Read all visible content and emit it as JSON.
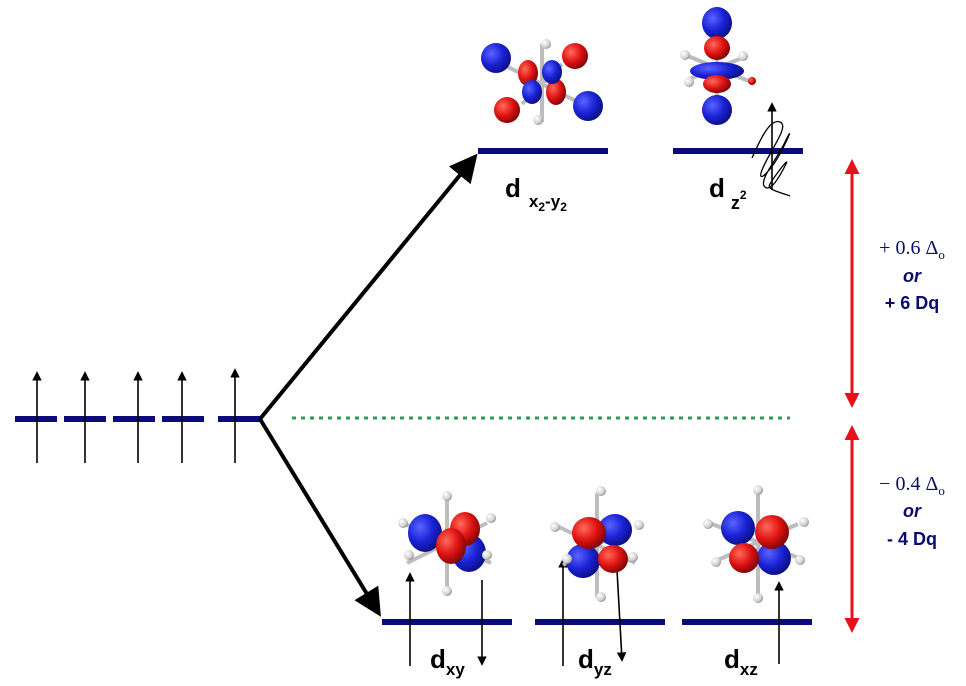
{
  "colors": {
    "level": "#0a0a7a",
    "arrow": "#000000",
    "red_arrow": "#e8101a",
    "dotted": "#2e9a5a",
    "lobe_blue": "#1a22d6",
    "lobe_red": "#e01212",
    "text_blue": "#0b0b6e"
  },
  "icons": [
    "dxy-orbital-icon",
    "dyz-orbital-icon",
    "dxz-orbital-icon",
    "dx2y2-orbital-icon",
    "dz2-orbital-icon"
  ],
  "upper_labels": {
    "dx2y2": {
      "main": "d",
      "sub1": "x",
      "sub1_sub": "2",
      "dash": "-",
      "sub2": "y",
      "sub2_sub": "2"
    },
    "dz2": {
      "main": "d",
      "sub": "z",
      "sup": "2"
    }
  },
  "lower_labels": {
    "dxy": {
      "main": "d",
      "sub": "xy"
    },
    "dyz": {
      "main": "d",
      "sub": "yz"
    },
    "dxz": {
      "main": "d",
      "sub": "xz"
    }
  },
  "upper_energy": {
    "line1_sign": "+",
    "line1_value": "0.6",
    "line1_delta": "Δ",
    "line1_delta_sub": "o",
    "line2": "or",
    "line3": "+ 6 Dq"
  },
  "lower_energy": {
    "line1_sign": "−",
    "line1_value": "0.4",
    "line1_delta": "Δ",
    "line1_delta_sub": "o",
    "line2": "or",
    "line3": "- 4 Dq"
  }
}
